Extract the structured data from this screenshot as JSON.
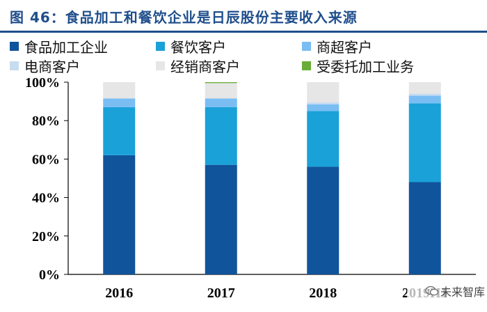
{
  "header": {
    "title": "图 46：食品加工和餐饮企业是日辰股份主要收入来源"
  },
  "colors": {
    "title": "#1f4e8c",
    "axis": "#000000",
    "grid": "none"
  },
  "watermark": {
    "text": "未来智库",
    "icon": "wechat-logo-icon"
  },
  "chart_data": {
    "type": "bar",
    "stacked": true,
    "categories": [
      "2016",
      "2017",
      "2018",
      "2019H1"
    ],
    "y_ticks": [
      "0%",
      "20%",
      "40%",
      "60%",
      "80%",
      "100%"
    ],
    "ylim": [
      0,
      100
    ],
    "y_unit": "%",
    "grid": false,
    "legend_position": "top",
    "series": [
      {
        "name": "食品加工企业",
        "color": "#10549b",
        "values": [
          62,
          57,
          56,
          48
        ]
      },
      {
        "name": "餐饮客户",
        "color": "#1aa1d8",
        "values": [
          25,
          30,
          29,
          41
        ]
      },
      {
        "name": "商超客户",
        "color": "#79bdf3",
        "values": [
          4.5,
          4.5,
          3.5,
          4
        ]
      },
      {
        "name": "电商客户",
        "color": "#c7dcef",
        "values": [
          0,
          0,
          1,
          1
        ]
      },
      {
        "name": "经销商客户",
        "color": "#e6e6e6",
        "values": [
          8.5,
          8,
          10.5,
          6
        ]
      },
      {
        "name": "受委托加工业务",
        "color": "#6aae3a",
        "values": [
          0,
          0.5,
          0,
          0
        ]
      }
    ]
  }
}
